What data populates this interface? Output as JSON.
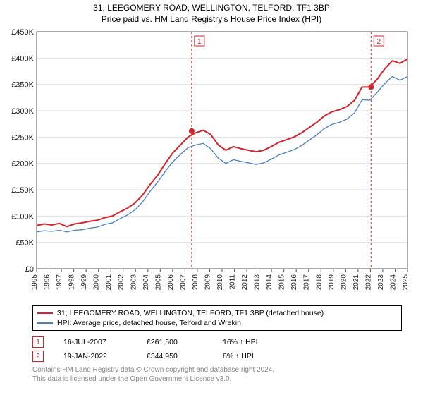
{
  "title_line1": "31, LEEGOMERY ROAD, WELLINGTON, TELFORD, TF1 3BP",
  "title_line2": "Price paid vs. HM Land Registry's House Price Index (HPI)",
  "yaxis": {
    "min": 0,
    "max": 450000,
    "step": 50000,
    "tick_labels": [
      "£0",
      "£50K",
      "£100K",
      "£150K",
      "£200K",
      "£250K",
      "£300K",
      "£350K",
      "£400K",
      "£450K"
    ]
  },
  "xaxis": {
    "years": [
      1995,
      1996,
      1997,
      1998,
      1999,
      2000,
      2001,
      2002,
      2003,
      2004,
      2005,
      2006,
      2007,
      2008,
      2009,
      2010,
      2011,
      2012,
      2013,
      2014,
      2015,
      2016,
      2017,
      2018,
      2019,
      2020,
      2021,
      2022,
      2023,
      2024,
      2025
    ]
  },
  "series": {
    "property": {
      "label": "31, LEEGOMERY ROAD, WELLINGTON, TELFORD, TF1 3BP (detached house)",
      "color": "#d4232a",
      "width": 2,
      "yvals": [
        82,
        85,
        83,
        86,
        80,
        85,
        87,
        90,
        92,
        97,
        100,
        108,
        115,
        125,
        140,
        160,
        178,
        200,
        220,
        235,
        250,
        258,
        263,
        255,
        235,
        225,
        232,
        228,
        225,
        222,
        225,
        232,
        240,
        245,
        250,
        258,
        268,
        278,
        290,
        298,
        302,
        308,
        320,
        345,
        345,
        360,
        380,
        395,
        390,
        398
      ]
    },
    "hpi": {
      "label": "HPI: Average price, detached house, Telford and Wrekin",
      "color": "#4a7fc4",
      "width": 1.3,
      "yvals": [
        70,
        72,
        71,
        73,
        70,
        73,
        74,
        77,
        79,
        84,
        87,
        95,
        102,
        112,
        127,
        147,
        165,
        185,
        203,
        217,
        230,
        235,
        238,
        228,
        210,
        200,
        207,
        204,
        201,
        198,
        201,
        208,
        216,
        221,
        226,
        234,
        244,
        254,
        266,
        274,
        278,
        284,
        296,
        321,
        320,
        335,
        352,
        365,
        358,
        365
      ]
    }
  },
  "event_lines": {
    "color": "#d4232a",
    "dash": "3,3",
    "events": [
      {
        "num": "1",
        "year": 2007.54,
        "yval": 261500,
        "dot_color": "#d4232a"
      },
      {
        "num": "2",
        "year": 2022.05,
        "yval": 344950,
        "dot_color": "#d4232a"
      }
    ]
  },
  "legend": [
    {
      "color": "#d4232a",
      "label_key": "series.property.label"
    },
    {
      "color": "#4a7fc4",
      "label_key": "series.hpi.label"
    }
  ],
  "events_table": [
    {
      "num": "1",
      "color": "#d4232a",
      "date": "16-JUL-2007",
      "price": "£261,500",
      "delta": "16% ↑ HPI"
    },
    {
      "num": "2",
      "color": "#d4232a",
      "date": "19-JAN-2022",
      "price": "£344,950",
      "delta": "8% ↑ HPI"
    }
  ],
  "footer_line1": "Contains HM Land Registry data © Crown copyright and database right 2024.",
  "footer_line2": "This data is licensed under the Open Government Licence v3.0.",
  "plot": {
    "bg": "#ffffff",
    "grid_color": "#e2e2e2",
    "axis_color": "#555555"
  }
}
